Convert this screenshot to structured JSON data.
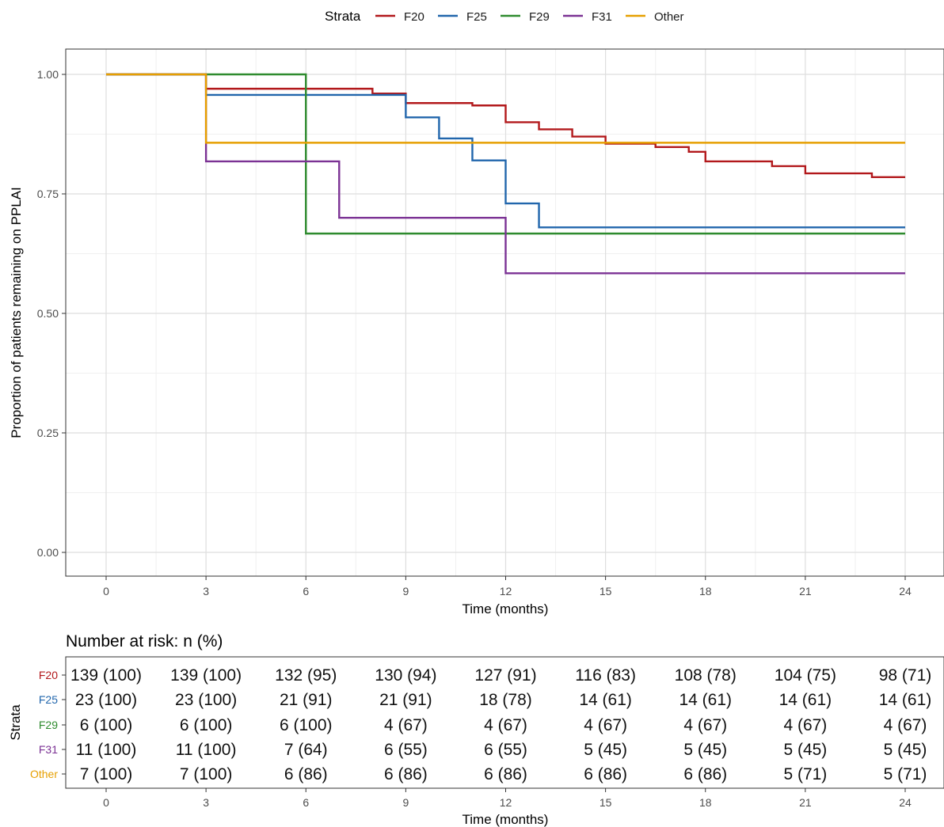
{
  "legend": {
    "title": "Strata",
    "items": [
      {
        "label": "F20",
        "color": "#B2181B"
      },
      {
        "label": "F25",
        "color": "#2166AC"
      },
      {
        "label": "F29",
        "color": "#2E8B2E"
      },
      {
        "label": "F31",
        "color": "#7B3294"
      },
      {
        "label": "Other",
        "color": "#E69F00"
      }
    ]
  },
  "chart_data": {
    "type": "line",
    "subtype": "kaplan-meier step curves",
    "xlabel": "Time (months)",
    "ylabel": "Proportion of patients remaining on PPLAI",
    "xlim": [
      0,
      24
    ],
    "ylim": [
      0,
      1
    ],
    "x_ticks": [
      "0",
      "3",
      "6",
      "9",
      "12",
      "15",
      "18",
      "21",
      "24"
    ],
    "y_ticks": [
      "0.00",
      "0.25",
      "0.50",
      "0.75",
      "1.00"
    ],
    "grid": true,
    "legend_position": "top",
    "series": [
      {
        "name": "F20",
        "color": "#B2181B",
        "steps": [
          [
            0,
            1.0
          ],
          [
            3,
            0.97
          ],
          [
            8,
            0.96
          ],
          [
            9,
            0.94
          ],
          [
            11,
            0.935
          ],
          [
            12,
            0.9
          ],
          [
            13,
            0.885
          ],
          [
            14,
            0.87
          ],
          [
            15,
            0.855
          ],
          [
            16.5,
            0.848
          ],
          [
            17.5,
            0.838
          ],
          [
            18,
            0.818
          ],
          [
            20,
            0.808
          ],
          [
            21,
            0.793
          ],
          [
            23,
            0.785
          ]
        ],
        "end": 24
      },
      {
        "name": "F25",
        "color": "#2166AC",
        "steps": [
          [
            0,
            1.0
          ],
          [
            3,
            0.957
          ],
          [
            9,
            0.91
          ],
          [
            10,
            0.866
          ],
          [
            11,
            0.82
          ],
          [
            12,
            0.73
          ],
          [
            13,
            0.68
          ]
        ],
        "end": 24
      },
      {
        "name": "F29",
        "color": "#2E8B2E",
        "steps": [
          [
            0,
            1.0
          ],
          [
            6,
            0.667
          ]
        ],
        "end": 24
      },
      {
        "name": "F31",
        "color": "#7B3294",
        "steps": [
          [
            0,
            1.0
          ],
          [
            3,
            0.818
          ],
          [
            7,
            0.7
          ],
          [
            12,
            0.584
          ]
        ],
        "end": 24
      },
      {
        "name": "Other",
        "color": "#E69F00",
        "steps": [
          [
            0,
            1.0
          ],
          [
            3,
            0.857
          ]
        ],
        "end": 24
      }
    ]
  },
  "risk_table": {
    "title": "Number at risk: n (%)",
    "ylabel": "Strata",
    "xlabel": "Time (months)",
    "x_ticks": [
      "0",
      "3",
      "6",
      "9",
      "12",
      "15",
      "18",
      "21",
      "24"
    ],
    "rows": [
      {
        "label": "F20",
        "color": "#B2181B",
        "values": [
          "139 (100)",
          "139 (100)",
          "132 (95)",
          "130 (94)",
          "127 (91)",
          "116 (83)",
          "108 (78)",
          "104 (75)",
          "98 (71)"
        ]
      },
      {
        "label": "F25",
        "color": "#2166AC",
        "values": [
          "23 (100)",
          "23 (100)",
          "21 (91)",
          "21 (91)",
          "18 (78)",
          "14 (61)",
          "14 (61)",
          "14 (61)",
          "14 (61)"
        ]
      },
      {
        "label": "F29",
        "color": "#2E8B2E",
        "values": [
          "6 (100)",
          "6 (100)",
          "6 (100)",
          "4 (67)",
          "4 (67)",
          "4 (67)",
          "4 (67)",
          "4 (67)",
          "4 (67)"
        ]
      },
      {
        "label": "F31",
        "color": "#7B3294",
        "values": [
          "11 (100)",
          "11 (100)",
          "7 (64)",
          "6 (55)",
          "6 (55)",
          "5 (45)",
          "5 (45)",
          "5 (45)",
          "5 (45)"
        ]
      },
      {
        "label": "Other",
        "color": "#E69F00",
        "values": [
          "7 (100)",
          "7 (100)",
          "6 (86)",
          "6 (86)",
          "6 (86)",
          "6 (86)",
          "6 (86)",
          "5 (71)",
          "5 (71)"
        ]
      }
    ]
  }
}
